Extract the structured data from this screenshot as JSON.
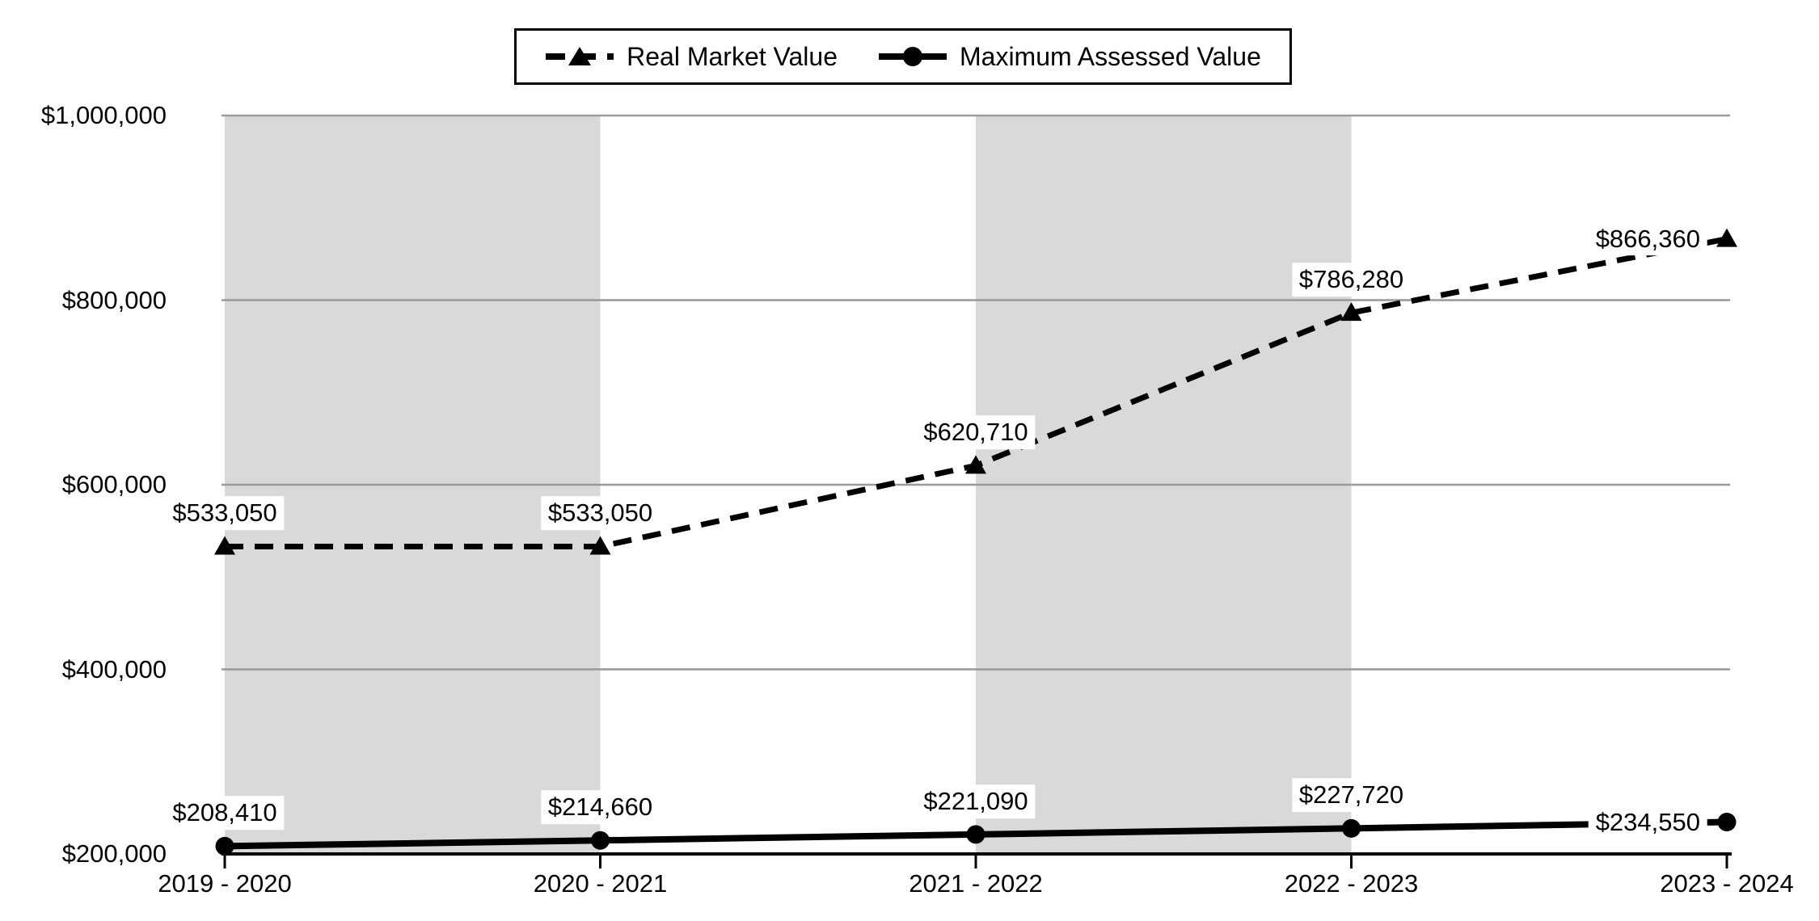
{
  "chart_data": {
    "type": "line",
    "categories": [
      "2019 - 2020",
      "2020 - 2021",
      "2021 - 2022",
      "2022 - 2023",
      "2023 - 2024"
    ],
    "series": [
      {
        "name": "Real Market Value",
        "values": [
          533050,
          533050,
          620710,
          786280,
          866360
        ],
        "labels": [
          "$533,050",
          "$533,050",
          "$620,710",
          "$786,280",
          "$866,360"
        ],
        "label_placement": [
          "above",
          "above",
          "above",
          "above",
          "left"
        ],
        "line_style": "dashed",
        "marker": "triangle"
      },
      {
        "name": "Maximum Assessed Value",
        "values": [
          208410,
          214660,
          221090,
          227720,
          234550
        ],
        "labels": [
          "$208,410",
          "$214,660",
          "$221,090",
          "$227,720",
          "$234,550"
        ],
        "label_placement": [
          "above",
          "above",
          "above",
          "above",
          "left"
        ],
        "line_style": "solid",
        "marker": "circle"
      }
    ],
    "y_ticks": [
      {
        "value": 200000,
        "label": "$200,000"
      },
      {
        "value": 400000,
        "label": "$400,000"
      },
      {
        "value": 600000,
        "label": "$600,000"
      },
      {
        "value": 800000,
        "label": "$800,000"
      },
      {
        "value": 1000000,
        "label": "$1,000,000"
      }
    ],
    "ylim": [
      200000,
      1000000
    ],
    "xlabel": "",
    "ylabel": "",
    "title": "",
    "grid": true,
    "legend_position": "top",
    "shaded_bands": [
      [
        0,
        1
      ],
      [
        2,
        3
      ]
    ],
    "colors": {
      "series": "#000000",
      "band": "#D9D9D9",
      "gridline": "#999999",
      "axis": "#000000",
      "label_bg": "#FFFFFF",
      "text": "#000000",
      "background": "#FFFFFF"
    }
  }
}
